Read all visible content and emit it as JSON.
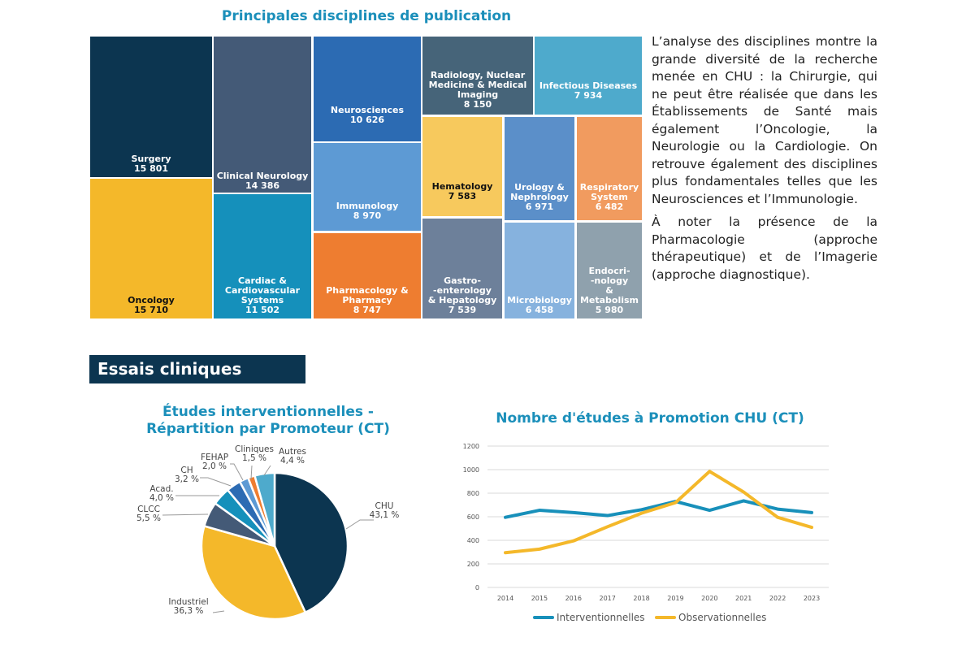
{
  "treemap": {
    "title": "Principales disciplines de publication"
  },
  "side_text": {
    "paragraphs": [
      "L’analyse des disciplines montre la grande diversité de la recherche menée en CHU : la Chirurgie, qui ne peut être réalisée que dans les Établissements de Santé mais également l’Oncologie, la Neurologie ou la Cardiologie. On retrouve également des disciplines plus fondamentales telles que les Neurosciences et l’Immunologie.",
      "À noter la présence de la Pharmacologie (approche thérapeutique) et de l’Imagerie (approche diagnostique)."
    ]
  },
  "section": {
    "title": "Essais cliniques"
  },
  "pie": {
    "title_line1": "Études interventionnelles -",
    "title_line2": "Répartition par Promoteur (CT)"
  },
  "line": {
    "title": "Nombre d'études à Promotion CHU (CT)"
  },
  "chart_data": [
    {
      "type": "treemap",
      "title": "Principales disciplines de publication",
      "items": [
        {
          "label": "Surgery",
          "value": 15801,
          "value_text": "15 801",
          "color": "#0c3550"
        },
        {
          "label": "Oncology",
          "value": 15710,
          "value_text": "15 710",
          "color": "#f4b82a"
        },
        {
          "label": "Clinical Neurology",
          "value": 14386,
          "value_text": "14 386",
          "color": "#445a77"
        },
        {
          "label": "Cardiac &\nCardiovascular\nSystems",
          "value": 11502,
          "value_text": "11 502",
          "color": "#1590bb"
        },
        {
          "label": "Neurosciences",
          "value": 10626,
          "value_text": "10 626",
          "color": "#2c6bb3"
        },
        {
          "label": "Immunology",
          "value": 8970,
          "value_text": "8 970",
          "color": "#5d9ad4"
        },
        {
          "label": "Pharmacology &\nPharmacy",
          "value": 8747,
          "value_text": "8 747",
          "color": "#ee7d30"
        },
        {
          "label": "Radiology, Nuclear\nMedicine & Medical\nImaging",
          "value": 8150,
          "value_text": "8 150",
          "color": "#466479"
        },
        {
          "label": "Infectious Diseases",
          "value": 7934,
          "value_text": "7 934",
          "color": "#4eaacc"
        },
        {
          "label": "Hematology",
          "value": 7583,
          "value_text": "7 583",
          "color": "#f7c95d"
        },
        {
          "label": "Gastro-\n-enterology\n& Hepatology",
          "value": 7539,
          "value_text": "7 539",
          "color": "#6d809a"
        },
        {
          "label": "Urology &\nNephrology",
          "value": 6971,
          "value_text": "6 971",
          "color": "#5b8fc9"
        },
        {
          "label": "Microbiology",
          "value": 6458,
          "value_text": "6 458",
          "color": "#86b2de"
        },
        {
          "label": "Respiratory\nSystem",
          "value": 6482,
          "value_text": "6 482",
          "color": "#f19b5f"
        },
        {
          "label": "Endocri-\n-nology\n&\nMetabolism",
          "value": 5980,
          "value_text": "5 980",
          "color": "#8fa1ad"
        }
      ]
    },
    {
      "type": "pie",
      "title": "Études interventionnelles - Répartition par Promoteur (CT)",
      "slices": [
        {
          "label": "CHU",
          "value": 43.1,
          "value_text": "43,1 %",
          "color": "#0c3550"
        },
        {
          "label": "Industriel",
          "value": 36.3,
          "value_text": "36,3 %",
          "color": "#f4b82a"
        },
        {
          "label": "CLCC",
          "value": 5.5,
          "value_text": "5,5 %",
          "color": "#445a77"
        },
        {
          "label": "Acad.",
          "value": 4.0,
          "value_text": "4,0 %",
          "color": "#1590bb"
        },
        {
          "label": "CH",
          "value": 3.2,
          "value_text": "3,2 %",
          "color": "#2c6bb3"
        },
        {
          "label": "FEHAP",
          "value": 2.0,
          "value_text": "2,0 %",
          "color": "#5d9ad4"
        },
        {
          "label": "Cliniques",
          "value": 1.5,
          "value_text": "1,5 %",
          "color": "#ee7d30"
        },
        {
          "label": "Autres",
          "value": 4.4,
          "value_text": "4,4 %",
          "color": "#4eaacc"
        }
      ]
    },
    {
      "type": "line",
      "title": "Nombre d'études à Promotion CHU (CT)",
      "x": [
        "2014",
        "2015",
        "2016",
        "2017",
        "2018",
        "2019",
        "2020",
        "2021",
        "2022",
        "2023"
      ],
      "ylim": [
        0,
        1200
      ],
      "yticks": [
        0,
        200,
        400,
        600,
        800,
        1000,
        1200
      ],
      "grid": true,
      "legend": "bottom",
      "series": [
        {
          "name": "Interventionnelles",
          "color": "#1890ba",
          "values": [
            595,
            655,
            635,
            610,
            660,
            730,
            655,
            735,
            665,
            635
          ]
        },
        {
          "name": "Observationnelles",
          "color": "#f4b82a",
          "values": [
            295,
            325,
            395,
            515,
            630,
            720,
            985,
            810,
            595,
            510
          ]
        }
      ]
    }
  ]
}
